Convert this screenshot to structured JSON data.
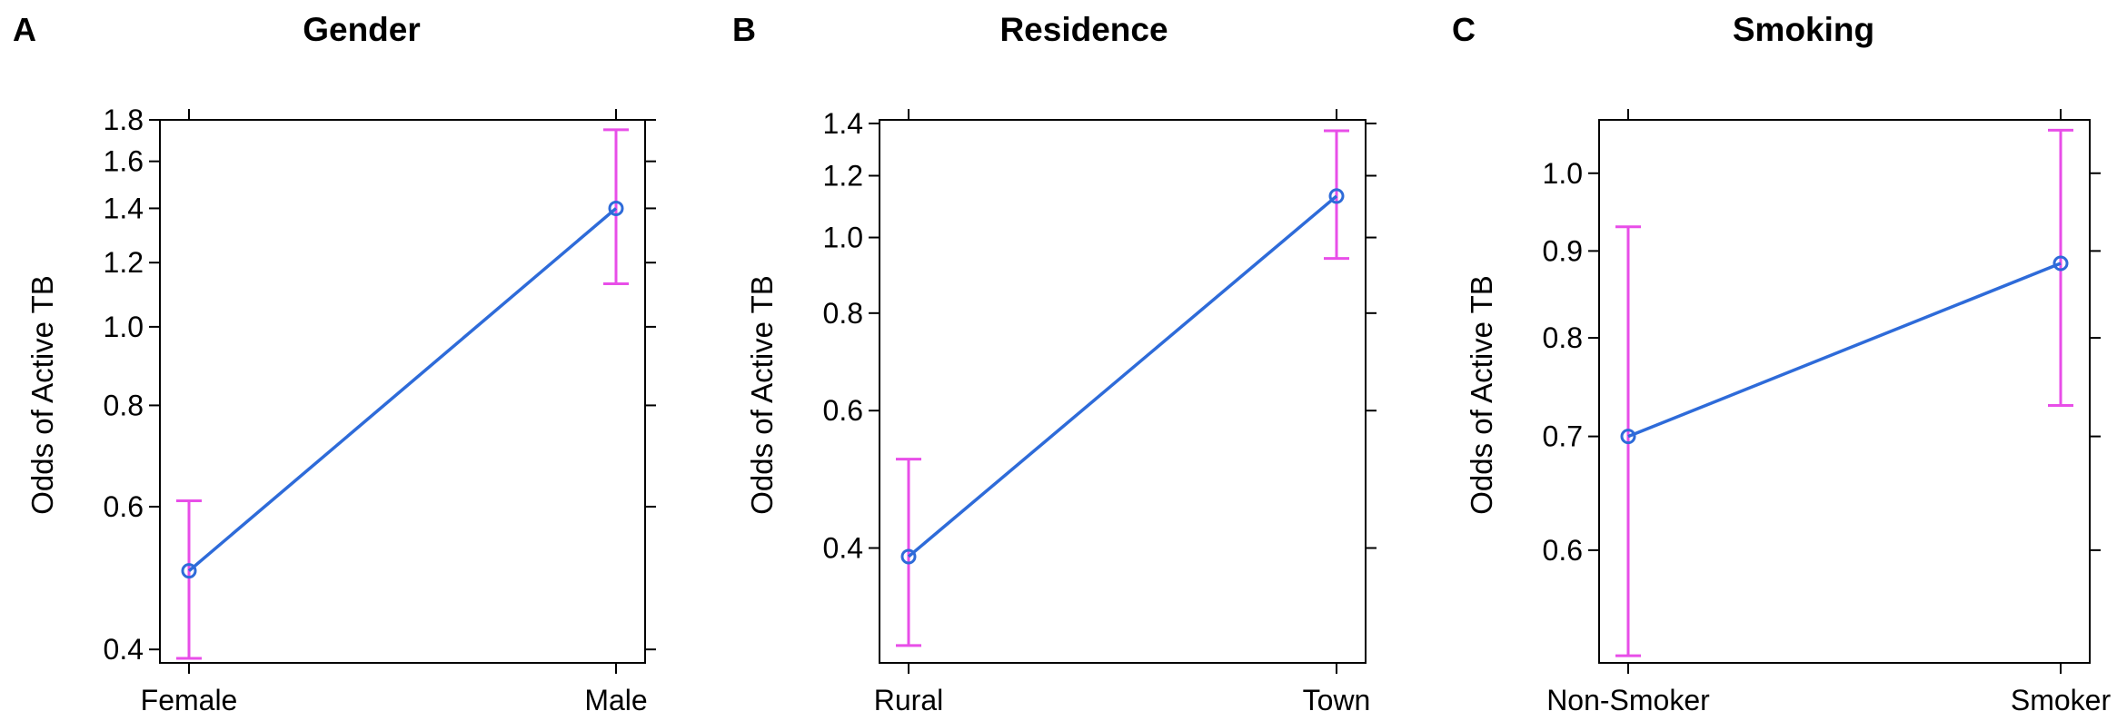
{
  "colors": {
    "line": "#2e6bd9",
    "point": "#2e6bd9",
    "ci": "#e84ee8"
  },
  "chart_data": [
    {
      "type": "line",
      "panel": "A",
      "title": "Gender",
      "ylabel": "Odds of Active TB",
      "scale": "log",
      "categories": [
        "Female",
        "Male"
      ],
      "values": [
        0.5,
        1.4
      ],
      "ci_lower": [
        0.39,
        1.13
      ],
      "ci_upper": [
        0.61,
        1.75
      ],
      "yticks": [
        0.4,
        0.6,
        0.8,
        1.0,
        1.2,
        1.4,
        1.6,
        1.8
      ],
      "ytick_labels": [
        "0.4",
        "0.6",
        "0.8",
        "1.0",
        "1.2",
        "1.4",
        "1.6",
        "1.8"
      ],
      "grid": false
    },
    {
      "type": "line",
      "panel": "B",
      "title": "Residence",
      "ylabel": "Odds of Active TB",
      "scale": "log",
      "categories": [
        "Rural",
        "Town"
      ],
      "values": [
        0.39,
        1.13
      ],
      "ci_lower": [
        0.3,
        0.94
      ],
      "ci_upper": [
        0.52,
        1.37
      ],
      "yticks": [
        0.4,
        0.6,
        0.8,
        1.0,
        1.2,
        1.4
      ],
      "ytick_labels": [
        "0.4",
        "0.6",
        "0.8",
        "1.0",
        "1.2",
        "1.4"
      ],
      "grid": false
    },
    {
      "type": "line",
      "panel": "C",
      "title": "Smoking",
      "ylabel": "Odds of Active TB",
      "scale": "log",
      "categories": [
        "Non-Smoker",
        "Smoker"
      ],
      "values": [
        0.7,
        0.885
      ],
      "ci_lower": [
        0.52,
        0.73
      ],
      "ci_upper": [
        0.93,
        1.06
      ],
      "yticks": [
        0.6,
        0.7,
        0.8,
        0.9,
        1.0
      ],
      "ytick_labels": [
        "0.6",
        "0.7",
        "0.8",
        "0.9",
        "1.0"
      ],
      "grid": false
    }
  ]
}
